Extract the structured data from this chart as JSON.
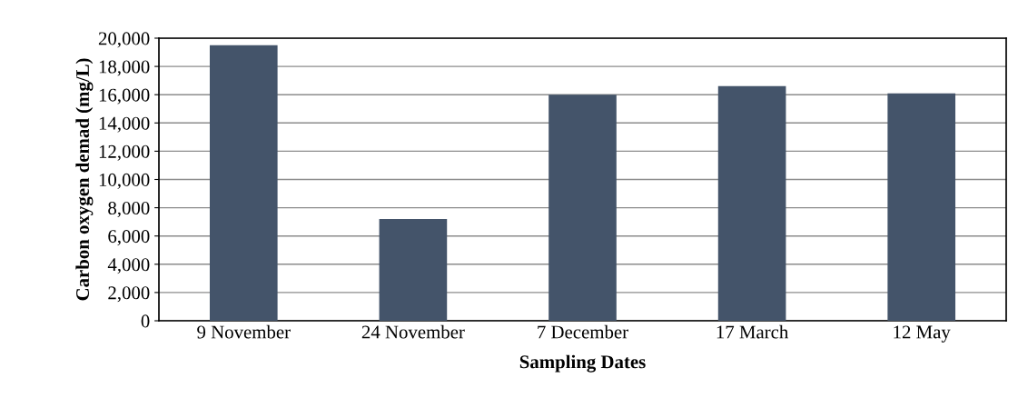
{
  "chart_data": {
    "type": "bar",
    "xlabel": "Sampling Dates",
    "ylabel": "Carbon oxygen demad (mg/L)",
    "categories": [
      "9 November",
      "24 November",
      "7 December",
      "17 March",
      "12 May"
    ],
    "values": [
      19500,
      7200,
      16000,
      16600,
      16100
    ],
    "color": "#44546a",
    "ylim": [
      0,
      20000
    ],
    "yticks": [
      {
        "value": 0,
        "label": "0"
      },
      {
        "value": 2000,
        "label": "2,000"
      },
      {
        "value": 4000,
        "label": "4,000"
      },
      {
        "value": 6000,
        "label": "6,000"
      },
      {
        "value": 8000,
        "label": "8,000"
      },
      {
        "value": 10000,
        "label": "10,000"
      },
      {
        "value": 12000,
        "label": "12,000"
      },
      {
        "value": 14000,
        "label": "14,000"
      },
      {
        "value": 16000,
        "label": "16,000"
      },
      {
        "value": 18000,
        "label": "18,000"
      },
      {
        "value": 20000,
        "label": "20,000"
      }
    ],
    "grid": "y"
  }
}
